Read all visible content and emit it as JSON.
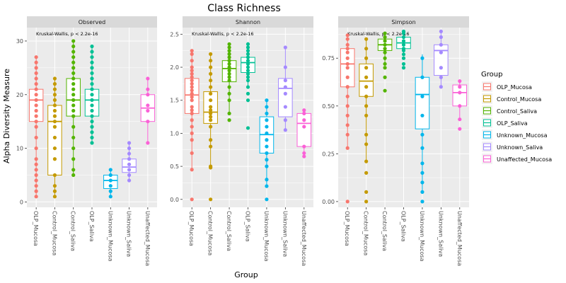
{
  "chart_data": {
    "type": "box",
    "title": "Class Richness",
    "xlabel": "Group",
    "ylabel": "Alpha Diversity Measure",
    "categories": [
      "OLP_Mucosa",
      "Control_Mucosa",
      "Control_Saliva",
      "OLP_Saliva",
      "Unknown_Mucosa",
      "Unknown_Saliva",
      "Unaffected_Mucosa"
    ],
    "legend": {
      "title": "Group",
      "position": "right",
      "entries": [
        "OLP_Mucosa",
        "Control_Mucosa",
        "Control_Saliva",
        "OLP_Saliva",
        "Unknown_Mucosa",
        "Unknown_Saliva",
        "Unaffected_Mucosa"
      ]
    },
    "colors": [
      "#F8766D",
      "#C49A00",
      "#53B400",
      "#00C094",
      "#00B6EB",
      "#A58AFF",
      "#FB61D7"
    ],
    "grid": true,
    "panels": [
      {
        "name": "Observed",
        "annotation": "Kruskal-Wallis, p < 2.2e-16",
        "ylim": [
          -1,
          32.5
        ],
        "yticks": [
          0,
          10,
          20,
          30
        ],
        "ytick_labels": [
          "0",
          "10",
          "20",
          "30"
        ],
        "boxes": [
          {
            "q1": 15,
            "median": 19,
            "q3": 21,
            "lower": 1,
            "upper": 27
          },
          {
            "q1": 5,
            "median": 15,
            "q3": 18,
            "lower": 1,
            "upper": 23
          },
          {
            "q1": 16,
            "median": 19,
            "q3": 23,
            "lower": 5,
            "upper": 30
          },
          {
            "q1": 16,
            "median": 19,
            "q3": 21,
            "lower": 11,
            "upper": 29
          },
          {
            "q1": 2.5,
            "median": 4,
            "q3": 5,
            "lower": 1,
            "upper": 6
          },
          {
            "q1": 5.5,
            "median": 6.5,
            "q3": 8,
            "lower": 4,
            "upper": 11
          },
          {
            "q1": 15,
            "median": 17.5,
            "q3": 20,
            "lower": 11,
            "upper": 23
          }
        ],
        "points": [
          [
            1,
            2,
            3,
            4,
            5,
            6,
            7,
            8,
            10,
            12,
            14,
            15,
            16,
            17,
            18,
            19,
            20,
            21,
            22,
            23,
            24,
            25,
            26,
            27
          ],
          [
            1,
            2,
            3,
            5,
            8,
            10,
            12,
            14,
            15,
            16,
            17,
            18,
            19,
            20,
            21,
            22,
            23
          ],
          [
            5,
            6,
            8,
            10,
            12,
            14,
            16,
            17,
            18,
            19,
            20,
            21,
            22,
            23,
            24,
            25,
            26,
            27,
            28,
            29,
            30
          ],
          [
            11,
            12,
            13,
            14,
            15,
            16,
            17,
            18,
            19,
            20,
            21,
            22,
            23,
            24,
            25,
            26,
            27,
            28,
            29
          ],
          [
            1,
            2,
            3,
            4,
            5,
            6
          ],
          [
            4,
            5,
            6,
            7,
            8,
            9,
            10,
            11
          ],
          [
            11,
            15,
            17,
            18,
            20,
            21,
            23
          ]
        ]
      },
      {
        "name": "Shannon",
        "annotation": "Kruskal-Wallis, p < 2.2e-16",
        "ylim": [
          -0.12,
          2.6
        ],
        "yticks": [
          0,
          0.5,
          1,
          1.5,
          2,
          2.5
        ],
        "ytick_labels": [
          "0.0",
          "0.5",
          "1.0",
          "1.5",
          "2.0",
          "2.5"
        ],
        "boxes": [
          {
            "q1": 1.3,
            "median": 1.58,
            "q3": 1.83,
            "lower": 0.45,
            "upper": 2.25
          },
          {
            "q1": 1.15,
            "median": 1.32,
            "q3": 1.63,
            "lower": 0.48,
            "upper": 2.2
          },
          {
            "q1": 1.78,
            "median": 1.98,
            "q3": 2.1,
            "lower": 1.3,
            "upper": 2.35
          },
          {
            "q1": 1.92,
            "median": 2.07,
            "q3": 2.15,
            "lower": 1.7,
            "upper": 2.38
          },
          {
            "q1": 0.7,
            "median": 0.98,
            "q3": 1.25,
            "lower": 0.2,
            "upper": 1.52
          },
          {
            "q1": 1.25,
            "median": 1.68,
            "q3": 1.83,
            "lower": 1.05,
            "upper": 2.3
          },
          {
            "q1": 0.8,
            "median": 1.15,
            "q3": 1.3,
            "lower": 0.65,
            "upper": 1.35
          }
        ],
        "points": [
          [
            0,
            0.45,
            0.7,
            0.9,
            1.0,
            1.1,
            1.2,
            1.3,
            1.35,
            1.4,
            1.5,
            1.55,
            1.6,
            1.65,
            1.7,
            1.75,
            1.8,
            1.85,
            1.9,
            1.95,
            2.0,
            2.1,
            2.2,
            2.25
          ],
          [
            0,
            0.48,
            0.5,
            0.8,
            0.9,
            1.1,
            1.2,
            1.25,
            1.3,
            1.35,
            1.4,
            1.5,
            1.6,
            1.7,
            1.8,
            1.9,
            2.0,
            2.1,
            2.2
          ],
          [
            1.2,
            1.3,
            1.5,
            1.6,
            1.7,
            1.8,
            1.85,
            1.9,
            1.95,
            2.0,
            2.05,
            2.1,
            2.15,
            2.2,
            2.25,
            2.3,
            2.35
          ],
          [
            1.08,
            1.5,
            1.6,
            1.7,
            1.8,
            1.85,
            1.9,
            1.95,
            2.0,
            2.05,
            2.1,
            2.15,
            2.2,
            2.25,
            2.3,
            2.35
          ],
          [
            0,
            0.2,
            0.3,
            0.5,
            0.6,
            0.7,
            0.8,
            0.9,
            1.0,
            1.1,
            1.2,
            1.3,
            1.4,
            1.5
          ],
          [
            1.05,
            1.2,
            1.4,
            1.6,
            1.7,
            1.8,
            2.0,
            2.3
          ],
          [
            0.65,
            0.7,
            0.8,
            1.1,
            1.2,
            1.3,
            1.35
          ]
        ]
      },
      {
        "name": "Simpson",
        "annotation": "Kruskal-Wallis, p < 2.2e-16",
        "ylim": [
          -0.03,
          0.91
        ],
        "yticks": [
          0,
          0.25,
          0.5,
          0.75
        ],
        "ytick_labels": [
          "0.00",
          "0.25",
          "0.50",
          "0.75"
        ],
        "boxes": [
          {
            "q1": 0.6,
            "median": 0.72,
            "q3": 0.8,
            "lower": 0.28,
            "upper": 0.87
          },
          {
            "q1": 0.55,
            "median": 0.63,
            "q3": 0.72,
            "lower": 0.21,
            "upper": 0.85
          },
          {
            "q1": 0.79,
            "median": 0.82,
            "q3": 0.85,
            "lower": 0.72,
            "upper": 0.88
          },
          {
            "q1": 0.8,
            "median": 0.83,
            "q3": 0.86,
            "lower": 0.77,
            "upper": 0.89
          },
          {
            "q1": 0.38,
            "median": 0.56,
            "q3": 0.65,
            "lower": 0.05,
            "upper": 0.77
          },
          {
            "q1": 0.66,
            "median": 0.79,
            "q3": 0.82,
            "lower": 0.6,
            "upper": 0.89
          },
          {
            "q1": 0.5,
            "median": 0.57,
            "q3": 0.61,
            "lower": 0.43,
            "upper": 0.63
          }
        ],
        "points": [
          [
            0,
            0.28,
            0.35,
            0.4,
            0.45,
            0.5,
            0.55,
            0.6,
            0.65,
            0.7,
            0.72,
            0.75,
            0.78,
            0.8,
            0.82,
            0.85,
            0.87
          ],
          [
            0,
            0.05,
            0.15,
            0.21,
            0.3,
            0.35,
            0.45,
            0.5,
            0.55,
            0.6,
            0.65,
            0.7,
            0.75,
            0.8,
            0.85
          ],
          [
            0.58,
            0.65,
            0.7,
            0.72,
            0.75,
            0.78,
            0.8,
            0.82,
            0.84,
            0.86,
            0.88
          ],
          [
            0.7,
            0.72,
            0.75,
            0.77,
            0.79,
            0.8,
            0.82,
            0.84,
            0.86,
            0.88,
            0.89
          ],
          [
            0,
            0.05,
            0.1,
            0.15,
            0.2,
            0.28,
            0.35,
            0.45,
            0.55,
            0.65,
            0.75
          ],
          [
            0.6,
            0.65,
            0.7,
            0.78,
            0.82,
            0.86,
            0.89
          ],
          [
            0.38,
            0.43,
            0.5,
            0.57,
            0.6,
            0.63
          ]
        ]
      }
    ]
  }
}
